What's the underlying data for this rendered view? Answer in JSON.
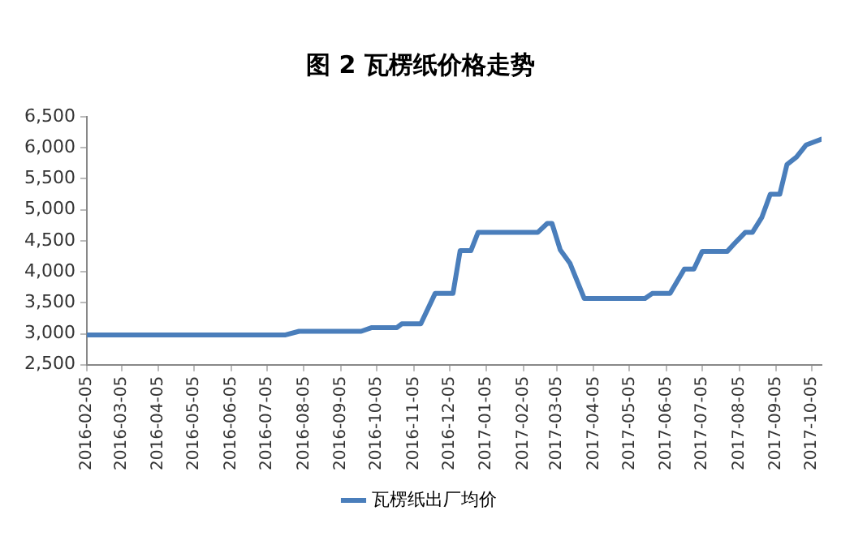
{
  "chart_data": {
    "type": "line",
    "title": "图 2 瓦楞纸价格走势",
    "x": [
      "2016-02-05",
      "2016-07-20",
      "2016-08-01",
      "2016-09-22",
      "2016-10-01",
      "2016-10-22",
      "2016-10-26",
      "2016-11-11",
      "2016-11-23",
      "2016-12-08",
      "2016-12-14",
      "2016-12-23",
      "2016-12-29",
      "2017-02-17",
      "2017-02-25",
      "2017-03-01",
      "2017-03-08",
      "2017-03-16",
      "2017-03-28",
      "2017-05-18",
      "2017-05-24",
      "2017-06-08",
      "2017-06-20",
      "2017-06-28",
      "2017-07-05",
      "2017-07-26",
      "2017-08-01",
      "2017-08-10",
      "2017-08-16",
      "2017-08-24",
      "2017-08-31",
      "2017-09-08",
      "2017-09-14",
      "2017-09-22",
      "2017-09-30",
      "2017-10-13"
    ],
    "series": [
      {
        "name": "瓦楞纸出厂均价",
        "color": "#4a7ebb",
        "values": [
          2980,
          2980,
          3040,
          3040,
          3100,
          3100,
          3160,
          3160,
          3650,
          3650,
          4340,
          4340,
          4635,
          4635,
          4780,
          4780,
          4350,
          4140,
          3570,
          3570,
          3650,
          3650,
          4045,
          4045,
          4330,
          4330,
          4455,
          4635,
          4635,
          4880,
          5250,
          5250,
          5730,
          5850,
          6045,
          6140
        ]
      }
    ],
    "xlim": [
      "2016-02-05",
      "2017-10-13"
    ],
    "xticks": [
      "2016-02-05",
      "2016-03-05",
      "2016-04-05",
      "2016-05-05",
      "2016-06-05",
      "2016-07-05",
      "2016-08-05",
      "2016-09-05",
      "2016-10-05",
      "2016-11-05",
      "2016-12-05",
      "2017-01-05",
      "2017-02-05",
      "2017-03-05",
      "2017-04-05",
      "2017-05-05",
      "2017-06-05",
      "2017-07-05",
      "2017-08-05",
      "2017-09-05",
      "2017-10-05"
    ],
    "ylim": [
      2500,
      6500
    ],
    "yticks": [
      {
        "value": 2500,
        "label": "2,500"
      },
      {
        "value": 3000,
        "label": "3,000"
      },
      {
        "value": 3500,
        "label": "3,500"
      },
      {
        "value": 4000,
        "label": "4,000"
      },
      {
        "value": 4500,
        "label": "4,500"
      },
      {
        "value": 5000,
        "label": "5,000"
      },
      {
        "value": 5500,
        "label": "5,500"
      },
      {
        "value": 6000,
        "label": "6,000"
      },
      {
        "value": 6500,
        "label": "6,500"
      }
    ],
    "grid": false,
    "legend": "bottom",
    "marker": "none",
    "line_style": "solid"
  }
}
